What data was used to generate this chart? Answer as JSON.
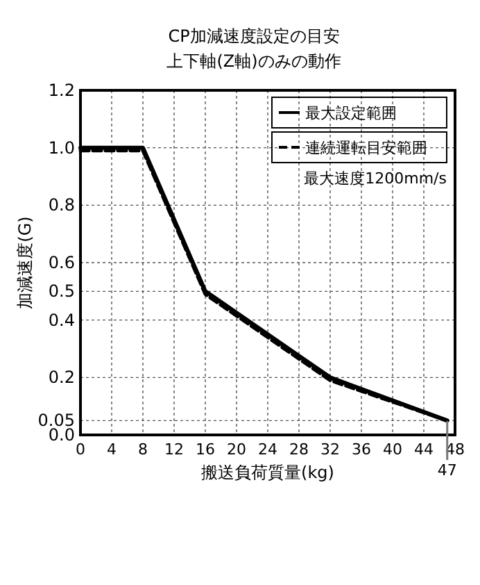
{
  "chart_data": {
    "type": "line",
    "title": "CP加減速度設定の目安",
    "subtitle": "上下軸(Z軸)のみの動作",
    "xlabel": "搬送負荷質量(kg)",
    "ylabel": "加減速度(G)",
    "x": [
      0,
      8,
      16,
      32,
      47
    ],
    "series": [
      {
        "name": "最大設定範囲",
        "color": "#000000",
        "values": [
          1.0,
          1.0,
          0.5,
          0.2,
          0.05
        ],
        "line_style": "solid"
      },
      {
        "name": "連続運転目安範囲",
        "color": "#000000",
        "values": [
          0.99,
          0.99,
          0.49,
          0.19,
          0.05
        ],
        "line_style": "dashed"
      }
    ],
    "xlim": [
      0,
      48
    ],
    "xticks": [
      0,
      4,
      8,
      12,
      16,
      20,
      24,
      28,
      32,
      36,
      40,
      44,
      48
    ],
    "ref_lines": [
      {
        "axis": "x",
        "value": 47,
        "label": "47",
        "color": "#777777"
      }
    ],
    "ylim": [
      0,
      1.2
    ],
    "yticks": [
      {
        "value": 0,
        "label": "0.0"
      },
      0.05,
      0.2,
      0.4,
      0.5,
      0.6,
      0.8,
      {
        "value": 1,
        "label": "1.0"
      },
      1.2
    ],
    "grid": true,
    "legend": "top right",
    "marker": "none",
    "annotations": [
      "最大速度1200mm/s"
    ]
  }
}
